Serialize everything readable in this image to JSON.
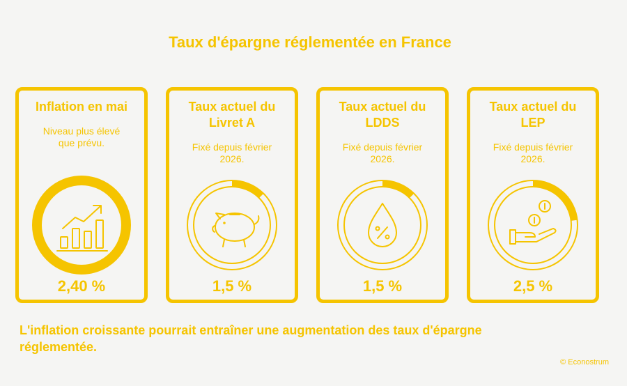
{
  "title": "Taux d'épargne réglementée en France",
  "cards": [
    {
      "title": "Inflation en mai",
      "subtitle": "Niveau plus élevé que prévu.",
      "value": "2,40 %",
      "icon": "bar-chart-trend-icon"
    },
    {
      "title": "Taux actuel du Livret A",
      "subtitle": "Fixé depuis février 2026.",
      "value": "1,5 %",
      "icon": "piggy-bank-icon"
    },
    {
      "title": "Taux actuel du LDDS",
      "subtitle": "Fixé depuis février 2026.",
      "value": "1,5 %",
      "icon": "percent-drop-icon"
    },
    {
      "title": "Taux actuel du LEP",
      "subtitle": "Fixé depuis février 2026.",
      "value": "2,5 %",
      "icon": "coins-in-hand-icon"
    }
  ],
  "conclusion": "L'inflation croissante pourrait entraîner une augmentation des taux d'épargne réglementée.",
  "credit": "© Econostrum",
  "colors": {
    "accent": "#f5c400",
    "background": "#f5f5f3"
  }
}
